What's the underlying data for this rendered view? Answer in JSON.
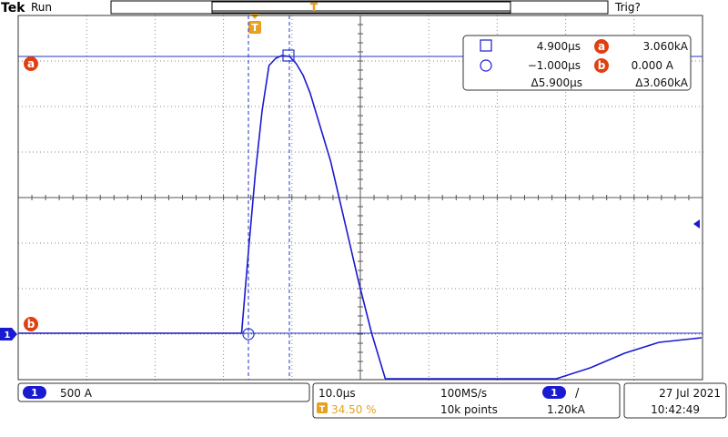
{
  "header": {
    "brand": "Tek",
    "run_state": "Run",
    "trigger_state": "Trig?"
  },
  "markers": {
    "trigger": "T",
    "cursor_a": "a",
    "cursor_b": "b",
    "channel": "1"
  },
  "readout": {
    "row1": {
      "time": "4.900µs",
      "label": "a",
      "value": "3.060kA"
    },
    "row2": {
      "time": "−1.000µs",
      "label": "b",
      "value": "0.000 A"
    },
    "row3": {
      "delta_time": "Δ5.900µs",
      "delta_value": "Δ3.060kA"
    }
  },
  "footer": {
    "channel": {
      "number": "1",
      "scale": "500 A"
    },
    "timebase": {
      "time_per_div": "10.0µs",
      "sample_rate": "100MS/s",
      "trigger_position": "34.50 %",
      "record_length": "10k points"
    },
    "trigger": {
      "channel": "1",
      "slope_icon": "rising-edge",
      "slope_glyph": "/",
      "level": "1.20kA"
    },
    "clock": {
      "date": "27 Jul  2021",
      "time": "10:42:49"
    }
  },
  "colors": {
    "trace": "#1a1ad0",
    "grid": "#777777",
    "cursor": "#2233cc",
    "accent_orange": "#e8a020",
    "marker_red": "#e04010"
  },
  "chart_data": {
    "type": "line",
    "xlabel": "",
    "ylabel": "",
    "x_units": "µs",
    "y_units": "kA",
    "grid": true,
    "series": [
      {
        "values_x": [
          -35,
          -20,
          -10,
          -1,
          0,
          1,
          2,
          3,
          4,
          4.9,
          6,
          7,
          8,
          9,
          10,
          12,
          14,
          16,
          18,
          20,
          21.7,
          30,
          39,
          42,
          45,
          50,
          55,
          60,
          65,
          70
        ],
        "values_y": [
          0.0,
          0.0,
          0.0,
          0.0,
          0.9,
          1.75,
          2.45,
          2.95,
          3.03,
          3.06,
          3.05,
          2.97,
          2.84,
          2.65,
          2.4,
          1.9,
          1.25,
          0.6,
          0.0,
          -0.55,
          -1.0,
          -1.0,
          -1.0,
          -0.8,
          -0.62,
          -0.38,
          -0.22,
          -0.1,
          -0.06,
          -0.05
        ]
      }
    ]
  }
}
